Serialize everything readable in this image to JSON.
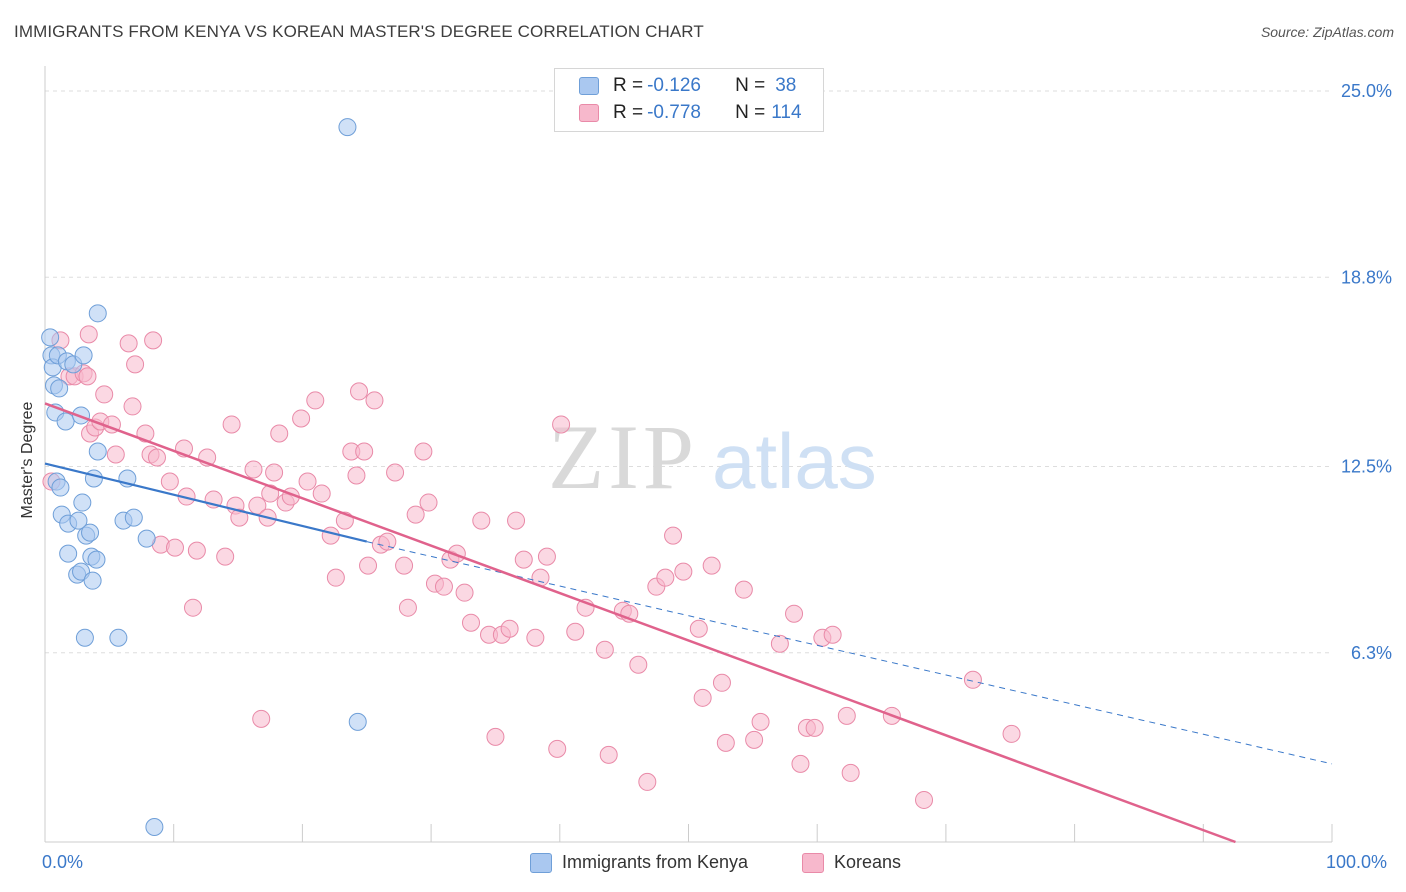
{
  "header": {
    "title": "IMMIGRANTS FROM KENYA VS KOREAN MASTER'S DEGREE CORRELATION CHART",
    "source": "Source: ZipAtlas.com"
  },
  "watermark": {
    "zip": "ZIP",
    "atlas": "atlas"
  },
  "legend": {
    "rows": [
      {
        "r_label": "R = ",
        "r_value": "-0.126",
        "n_label": "N = ",
        "n_value": "38",
        "color": "#aac8f0"
      },
      {
        "r_label": "R = ",
        "r_value": "-0.778",
        "n_label": "N = ",
        "n_value": "114",
        "color": "#f7b8cc"
      }
    ]
  },
  "bottom_legend": [
    {
      "label": "Immigrants from Kenya",
      "color": "#aac8f0"
    },
    {
      "label": "Koreans",
      "color": "#f7b8cc"
    }
  ],
  "colors": {
    "kenya_fill": "#aac8f0",
    "kenya_stroke": "#6f9fd8",
    "kenya_line": "#3a78c9",
    "korean_fill": "#f7b8cc",
    "korean_stroke": "#e98aa8",
    "korean_line": "#e0628c",
    "tick_text": "#3a78c9",
    "grid": "#dddddd"
  },
  "chart_data": {
    "type": "scatter",
    "title": "IMMIGRANTS FROM KENYA VS KOREAN MASTER'S DEGREE CORRELATION CHART",
    "xlabel": "",
    "ylabel": "Master's Degree",
    "xlim": [
      0,
      100
    ],
    "ylim": [
      0,
      25.7
    ],
    "y_ticks": [
      {
        "value": 6.3,
        "label": "6.3%"
      },
      {
        "value": 12.5,
        "label": "12.5%"
      },
      {
        "value": 18.8,
        "label": "18.8%"
      },
      {
        "value": 25.0,
        "label": "25.0%"
      }
    ],
    "x_tick_labels": [
      {
        "value": 0,
        "label": "0.0%"
      },
      {
        "value": 100,
        "label": "100.0%"
      }
    ],
    "x_minor_ticks": [
      10,
      20,
      30,
      40,
      50,
      60,
      70,
      80,
      90,
      100
    ],
    "grid": true,
    "legend_position": "top-center",
    "series": [
      {
        "name": "Immigrants from Kenya",
        "r": -0.126,
        "n": 38,
        "trend": {
          "x0": 0,
          "y0": 12.6,
          "x1": 25,
          "y1": 10.0,
          "dash_to_x": 100,
          "dash_to_y": 2.6
        },
        "points": [
          [
            0.4,
            16.8
          ],
          [
            0.5,
            16.2
          ],
          [
            0.6,
            15.8
          ],
          [
            0.7,
            15.2
          ],
          [
            0.8,
            14.3
          ],
          [
            1.0,
            16.2
          ],
          [
            1.1,
            15.1
          ],
          [
            0.9,
            12.0
          ],
          [
            1.2,
            11.8
          ],
          [
            1.3,
            10.9
          ],
          [
            1.6,
            14.0
          ],
          [
            1.7,
            16.0
          ],
          [
            1.8,
            10.6
          ],
          [
            1.8,
            9.6
          ],
          [
            2.2,
            15.9
          ],
          [
            2.5,
            8.9
          ],
          [
            2.6,
            10.7
          ],
          [
            2.8,
            9.0
          ],
          [
            2.8,
            14.2
          ],
          [
            2.9,
            11.3
          ],
          [
            3.0,
            16.2
          ],
          [
            3.1,
            6.8
          ],
          [
            3.2,
            10.2
          ],
          [
            3.5,
            10.3
          ],
          [
            3.6,
            9.5
          ],
          [
            3.7,
            8.7
          ],
          [
            3.8,
            12.1
          ],
          [
            4.0,
            9.4
          ],
          [
            4.1,
            13.0
          ],
          [
            4.1,
            17.6
          ],
          [
            5.7,
            6.8
          ],
          [
            6.1,
            10.7
          ],
          [
            6.4,
            12.1
          ],
          [
            7.9,
            10.1
          ],
          [
            8.5,
            0.5
          ],
          [
            23.5,
            23.8
          ],
          [
            24.3,
            4.0
          ],
          [
            6.9,
            10.8
          ]
        ]
      },
      {
        "name": "Koreans",
        "r": -0.778,
        "n": 114,
        "trend": {
          "x0": 0,
          "y0": 14.6,
          "x1": 92.5,
          "y1": 0
        },
        "points": [
          [
            0.5,
            12.0
          ],
          [
            1.2,
            16.7
          ],
          [
            1.9,
            15.5
          ],
          [
            2.3,
            15.5
          ],
          [
            3.0,
            15.6
          ],
          [
            3.3,
            15.5
          ],
          [
            3.4,
            16.9
          ],
          [
            3.5,
            13.6
          ],
          [
            3.9,
            13.8
          ],
          [
            4.3,
            14.0
          ],
          [
            4.6,
            14.9
          ],
          [
            5.2,
            13.9
          ],
          [
            5.5,
            12.9
          ],
          [
            6.5,
            16.6
          ],
          [
            6.8,
            14.5
          ],
          [
            7.0,
            15.9
          ],
          [
            7.8,
            13.6
          ],
          [
            8.2,
            12.9
          ],
          [
            8.4,
            16.7
          ],
          [
            8.7,
            12.8
          ],
          [
            9.0,
            9.9
          ],
          [
            9.7,
            12.0
          ],
          [
            10.1,
            9.8
          ],
          [
            10.8,
            13.1
          ],
          [
            11.0,
            11.5
          ],
          [
            11.5,
            7.8
          ],
          [
            11.8,
            9.7
          ],
          [
            12.6,
            12.8
          ],
          [
            13.1,
            11.4
          ],
          [
            14.0,
            9.5
          ],
          [
            14.5,
            13.9
          ],
          [
            14.8,
            11.2
          ],
          [
            15.1,
            10.8
          ],
          [
            16.2,
            12.4
          ],
          [
            16.5,
            11.2
          ],
          [
            16.8,
            4.1
          ],
          [
            17.3,
            10.8
          ],
          [
            17.5,
            11.6
          ],
          [
            17.8,
            12.3
          ],
          [
            18.2,
            13.6
          ],
          [
            18.7,
            11.3
          ],
          [
            19.1,
            11.5
          ],
          [
            19.9,
            14.1
          ],
          [
            20.4,
            12.0
          ],
          [
            21.0,
            14.7
          ],
          [
            21.5,
            11.6
          ],
          [
            22.2,
            10.2
          ],
          [
            22.6,
            8.8
          ],
          [
            23.3,
            10.7
          ],
          [
            23.8,
            13.0
          ],
          [
            24.2,
            12.2
          ],
          [
            24.4,
            15.0
          ],
          [
            24.8,
            13.0
          ],
          [
            25.1,
            9.2
          ],
          [
            25.6,
            14.7
          ],
          [
            26.1,
            9.9
          ],
          [
            26.6,
            10.0
          ],
          [
            27.2,
            12.3
          ],
          [
            27.9,
            9.2
          ],
          [
            28.2,
            7.8
          ],
          [
            28.8,
            10.9
          ],
          [
            29.4,
            13.0
          ],
          [
            29.8,
            11.3
          ],
          [
            30.3,
            8.6
          ],
          [
            31.0,
            8.5
          ],
          [
            31.5,
            9.4
          ],
          [
            32.0,
            9.6
          ],
          [
            32.6,
            8.3
          ],
          [
            33.1,
            7.3
          ],
          [
            33.9,
            10.7
          ],
          [
            34.5,
            6.9
          ],
          [
            35.0,
            3.5
          ],
          [
            35.5,
            6.9
          ],
          [
            36.1,
            7.1
          ],
          [
            36.6,
            10.7
          ],
          [
            37.2,
            9.4
          ],
          [
            38.1,
            6.8
          ],
          [
            38.5,
            8.8
          ],
          [
            39.0,
            9.5
          ],
          [
            39.8,
            3.1
          ],
          [
            40.1,
            13.9
          ],
          [
            41.2,
            7.0
          ],
          [
            42.0,
            7.8
          ],
          [
            43.5,
            6.4
          ],
          [
            43.8,
            2.9
          ],
          [
            44.9,
            7.7
          ],
          [
            45.4,
            7.6
          ],
          [
            46.1,
            5.9
          ],
          [
            46.8,
            2.0
          ],
          [
            47.5,
            8.5
          ],
          [
            48.2,
            8.8
          ],
          [
            48.8,
            10.2
          ],
          [
            49.6,
            9.0
          ],
          [
            50.8,
            7.1
          ],
          [
            51.1,
            4.8
          ],
          [
            51.8,
            9.2
          ],
          [
            52.6,
            5.3
          ],
          [
            52.9,
            3.3
          ],
          [
            54.3,
            8.4
          ],
          [
            55.1,
            3.4
          ],
          [
            55.6,
            4.0
          ],
          [
            57.1,
            6.6
          ],
          [
            58.2,
            7.6
          ],
          [
            58.7,
            2.6
          ],
          [
            59.2,
            3.8
          ],
          [
            59.8,
            3.8
          ],
          [
            60.4,
            6.8
          ],
          [
            61.2,
            6.9
          ],
          [
            62.3,
            4.2
          ],
          [
            62.6,
            2.3
          ],
          [
            65.8,
            4.2
          ],
          [
            68.3,
            1.4
          ],
          [
            72.1,
            5.4
          ],
          [
            75.1,
            3.6
          ]
        ]
      }
    ]
  }
}
